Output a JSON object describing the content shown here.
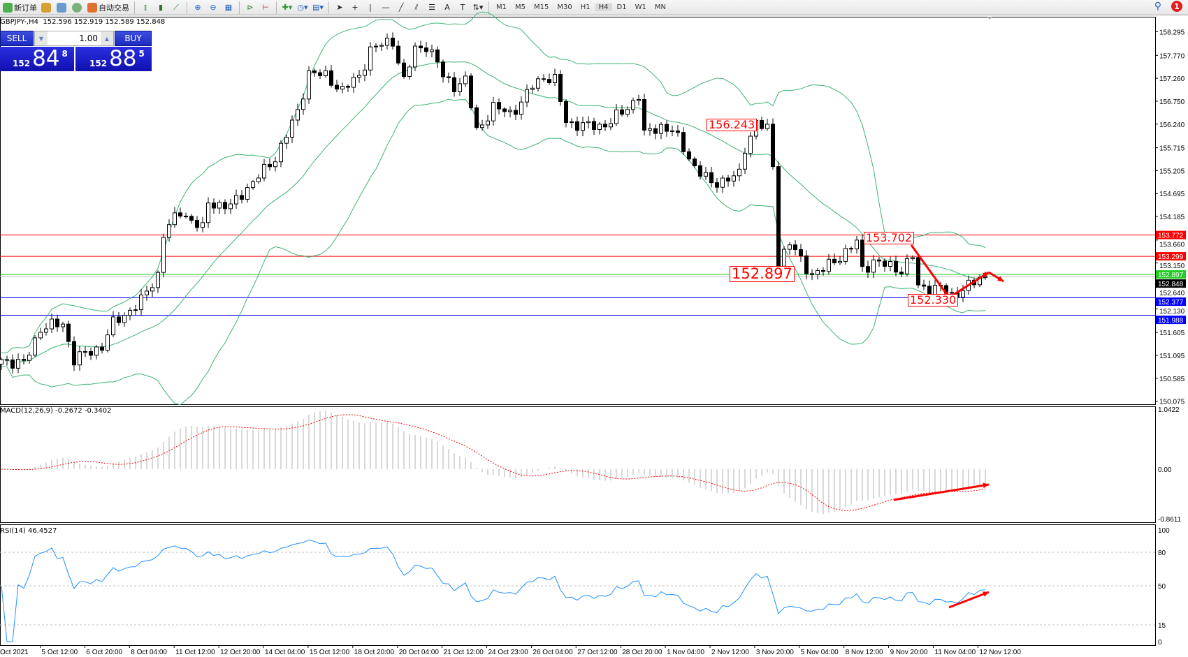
{
  "toolbar": {
    "new_order": "新订单",
    "auto_trading": "自动交易",
    "timeframes": [
      "M1",
      "M5",
      "M15",
      "M30",
      "H1",
      "H4",
      "D1",
      "W1",
      "MN"
    ],
    "notification_count": "1"
  },
  "symbol_info": "GBPJPY-,H4  152.596 152.919 152.589 152.848",
  "trade_panel": {
    "sell_label": "SELL",
    "buy_label": "BUY",
    "lot": "1.00",
    "sell_price": {
      "prefix": "152",
      "big": "84",
      "sup": "8"
    },
    "buy_price": {
      "prefix": "152",
      "big": "88",
      "sup": "5"
    }
  },
  "price_axis": {
    "ticks": [
      "158.295",
      "157.770",
      "157.260",
      "156.750",
      "156.240",
      "155.715",
      "155.205",
      "154.695",
      "154.185",
      "153.660",
      "153.150",
      "152.640",
      "152.130",
      "151.605",
      "151.095",
      "150.585",
      "150.075"
    ],
    "range": [
      150.075,
      158.295
    ]
  },
  "levels": [
    {
      "price": "153.772",
      "color": "#ff0000"
    },
    {
      "price": "153.299",
      "color": "#ff0000"
    },
    {
      "price": "152.897",
      "color": "#22cc22"
    },
    {
      "price": "152.848",
      "color": "#000000"
    },
    {
      "price": "152.377",
      "color": "#0000ff"
    },
    {
      "price": "151.988",
      "color": "#0000ff"
    }
  ],
  "annotations": {
    "a1": "156.243",
    "a2": "153.702",
    "a3": "152.897",
    "a4": "152.330"
  },
  "price_path": [
    [
      0,
      151.0
    ],
    [
      4,
      150.9
    ],
    [
      7,
      151.7
    ],
    [
      11,
      151.8
    ],
    [
      13,
      151.0
    ],
    [
      18,
      151.3
    ],
    [
      20,
      151.8
    ],
    [
      25,
      152.3
    ],
    [
      28,
      152.9
    ],
    [
      29,
      153.8
    ],
    [
      32,
      154.3
    ],
    [
      36,
      153.9
    ],
    [
      37,
      154.5
    ],
    [
      41,
      154.4
    ],
    [
      43,
      154.7
    ],
    [
      47,
      155.2
    ],
    [
      49,
      155.5
    ],
    [
      53,
      156.5
    ],
    [
      55,
      157.4
    ],
    [
      58,
      157.3
    ],
    [
      61,
      157.0
    ],
    [
      64,
      157.3
    ],
    [
      66,
      157.9
    ],
    [
      70,
      158.1
    ],
    [
      72,
      157.2
    ],
    [
      74,
      157.9
    ],
    [
      76,
      158.0
    ],
    [
      78,
      157.6
    ],
    [
      79,
      157.3
    ],
    [
      81,
      157.1
    ],
    [
      83,
      157.2
    ],
    [
      85,
      156.1
    ],
    [
      88,
      156.6
    ],
    [
      91,
      156.5
    ],
    [
      93,
      156.7
    ],
    [
      95,
      157.1
    ],
    [
      97,
      157.3
    ],
    [
      99,
      157.2
    ],
    [
      101,
      156.3
    ],
    [
      104,
      156.2
    ],
    [
      107,
      156.2
    ],
    [
      109,
      156.3
    ],
    [
      112,
      156.6
    ],
    [
      114,
      156.9
    ],
    [
      115,
      156.0
    ],
    [
      118,
      156.2
    ],
    [
      120,
      156.1
    ],
    [
      122,
      155.7
    ],
    [
      124,
      155.3
    ],
    [
      127,
      154.9
    ],
    [
      129,
      155.0
    ],
    [
      132,
      155.1
    ],
    [
      133,
      155.7
    ],
    [
      135,
      156.3
    ],
    [
      137,
      156.1
    ],
    [
      138,
      155.3
    ],
    [
      139,
      153.2
    ],
    [
      141,
      153.6
    ],
    [
      143,
      153.2
    ],
    [
      145,
      152.9
    ],
    [
      147,
      153.0
    ],
    [
      150,
      153.3
    ],
    [
      153,
      153.6
    ],
    [
      154,
      153.0
    ],
    [
      156,
      153.2
    ],
    [
      158,
      153.1
    ],
    [
      161,
      153.0
    ],
    [
      163,
      153.3
    ],
    [
      164,
      152.6
    ],
    [
      168,
      152.6
    ],
    [
      170,
      152.4
    ],
    [
      172,
      152.6
    ],
    [
      174,
      152.7
    ],
    [
      176,
      152.848
    ]
  ],
  "macd": {
    "label": "MACD(12,26,9) -0.2672 -0.3402",
    "ticks": [
      "1.0422",
      "0.00",
      "-0.8611"
    ],
    "range": [
      -0.8611,
      1.0422
    ]
  },
  "rsi": {
    "label": "RSI(14) 46.4527",
    "ticks": [
      "100",
      "80",
      "50",
      "15",
      "0"
    ],
    "levels": [
      80,
      50,
      15
    ]
  },
  "time_axis": [
    "Oct 2021",
    "5 Oct 12:00",
    "6 Oct 20:00",
    "8 Oct 04:00",
    "11 Oct 12:00",
    "12 Oct 20:00",
    "14 Oct 04:00",
    "15 Oct 12:00",
    "18 Oct 20:00",
    "20 Oct 04:00",
    "21 Oct 12:00",
    "24 Oct 23:00",
    "26 Oct 04:00",
    "27 Oct 12:00",
    "28 Oct 20:00",
    "1 Nov 04:00",
    "2 Nov 12:00",
    "3 Nov 20:00",
    "5 Nov 04:00",
    "8 Nov 12:00",
    "9 Nov 20:00",
    "11 Nov 04:00",
    "12 Nov 12:00"
  ],
  "colors": {
    "bands": "#3cb371",
    "macd_signal": "#ff0000",
    "macd_hist": "#b0b0b0",
    "rsi": "#1e90ff",
    "arrow": "#ff0000"
  }
}
